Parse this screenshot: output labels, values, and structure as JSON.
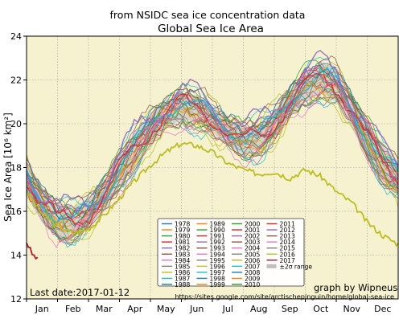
{
  "chart_data": {
    "type": "line",
    "suptitle": "from NSIDC sea ice concentration data",
    "title": "Global Sea Ice Area",
    "ylabel": "Sea Ice Area [10⁶ km²]",
    "ylim": [
      12,
      24
    ],
    "yticks": [
      "12",
      "14",
      "16",
      "18",
      "20",
      "22",
      "24"
    ],
    "months": [
      "Jan",
      "Feb",
      "Mar",
      "Apr",
      "May",
      "Jun",
      "Jul",
      "Aug",
      "Sep",
      "Oct",
      "Nov",
      "Dec"
    ],
    "grid": true,
    "background": "#f6f2d0",
    "annotations": {
      "last_date": "Last date:2017-01-12",
      "credit": "graph by Wipneus",
      "url": "https://sites.google.com/site/arctischepinguin/home/global-sea-ice"
    },
    "legend": {
      "position": "lower-center",
      "entries": [
        {
          "label": "1978",
          "color": "#1f77b4"
        },
        {
          "label": "1979",
          "color": "#ff7f0e"
        },
        {
          "label": "1980",
          "color": "#2ca02c"
        },
        {
          "label": "1981",
          "color": "#d62728"
        },
        {
          "label": "1982",
          "color": "#9467bd"
        },
        {
          "label": "1983",
          "color": "#8c564b"
        },
        {
          "label": "1984",
          "color": "#e377c2"
        },
        {
          "label": "1985",
          "color": "#7f7f7f"
        },
        {
          "label": "1986",
          "color": "#bcbd22"
        },
        {
          "label": "1987",
          "color": "#17becf"
        },
        {
          "label": "1988",
          "color": "#1f77b4"
        },
        {
          "label": "1989",
          "color": "#ff7f0e"
        },
        {
          "label": "1990",
          "color": "#2ca02c"
        },
        {
          "label": "1991",
          "color": "#d62728"
        },
        {
          "label": "1992",
          "color": "#9467bd"
        },
        {
          "label": "1993",
          "color": "#8c564b"
        },
        {
          "label": "1994",
          "color": "#e377c2"
        },
        {
          "label": "1995",
          "color": "#7f7f7f"
        },
        {
          "label": "1996",
          "color": "#bcbd22"
        },
        {
          "label": "1997",
          "color": "#17becf"
        },
        {
          "label": "1998",
          "color": "#1f77b4"
        },
        {
          "label": "1999",
          "color": "#ff7f0e"
        },
        {
          "label": "2000",
          "color": "#2ca02c"
        },
        {
          "label": "2001",
          "color": "#d62728"
        },
        {
          "label": "2002",
          "color": "#9467bd"
        },
        {
          "label": "2003",
          "color": "#8c564b"
        },
        {
          "label": "2004",
          "color": "#e377c2"
        },
        {
          "label": "2005",
          "color": "#7f7f7f"
        },
        {
          "label": "2006",
          "color": "#bcbd22"
        },
        {
          "label": "2007",
          "color": "#17becf"
        },
        {
          "label": "2008",
          "color": "#1f77b4"
        },
        {
          "label": "2009",
          "color": "#ff7f0e"
        },
        {
          "label": "2010",
          "color": "#2ca02c"
        },
        {
          "label": "2011",
          "color": "#d62728"
        },
        {
          "label": "2012",
          "color": "#9467bd"
        },
        {
          "label": "2013",
          "color": "#8c564b"
        },
        {
          "label": "2014",
          "color": "#e377c2"
        },
        {
          "label": "2015",
          "color": "#7f7f7f"
        },
        {
          "label": "2016",
          "color": "#bcbd22"
        },
        {
          "label": "2017",
          "color": "#b2182b"
        },
        {
          "label": "±2σ range",
          "color": "#bfbfbf"
        }
      ]
    },
    "climatology": {
      "name": "±2σ range",
      "x_month": [
        0,
        0.5,
        1,
        1.5,
        2,
        2.5,
        3,
        3.5,
        4,
        4.5,
        5,
        5.5,
        6,
        6.5,
        7,
        7.5,
        8,
        8.5,
        9,
        9.5,
        10,
        10.5,
        11,
        11.5,
        12
      ],
      "mean": [
        17.5,
        16.3,
        15.6,
        15.5,
        15.9,
        16.7,
        17.8,
        18.9,
        19.8,
        20.4,
        20.8,
        20.7,
        20.2,
        19.6,
        19.2,
        19.4,
        20.0,
        20.9,
        21.7,
        22.1,
        21.8,
        20.6,
        19.3,
        18.2,
        17.5
      ],
      "band": [
        0.8,
        0.8,
        0.8,
        0.7,
        0.7,
        0.7,
        0.7,
        0.7,
        0.7,
        0.6,
        0.6,
        0.6,
        0.6,
        0.6,
        0.6,
        0.6,
        0.6,
        0.6,
        0.7,
        0.7,
        0.8,
        0.8,
        0.8,
        0.8,
        0.8
      ]
    },
    "highlight_series": [
      {
        "name": "2016",
        "color": "#bcbd22",
        "x_month": [
          0,
          0.5,
          1,
          1.5,
          2,
          2.5,
          3,
          3.5,
          4,
          4.5,
          5,
          5.5,
          6,
          6.5,
          7,
          7.5,
          8,
          8.5,
          9,
          9.5,
          10,
          10.5,
          11,
          11.5,
          12
        ],
        "y": [
          16.9,
          15.9,
          15.3,
          15.0,
          15.2,
          15.8,
          16.6,
          17.4,
          18.1,
          18.7,
          19.1,
          19.0,
          18.7,
          18.2,
          17.9,
          17.7,
          17.8,
          17.5,
          17.9,
          17.6,
          16.9,
          16.4,
          15.5,
          14.9,
          14.5
        ]
      },
      {
        "name": "2017",
        "color": "#b2182b",
        "x_month": [
          0,
          0.1,
          0.2,
          0.3,
          0.4
        ],
        "y": [
          14.6,
          14.3,
          14.0,
          13.9,
          13.7
        ]
      }
    ]
  }
}
